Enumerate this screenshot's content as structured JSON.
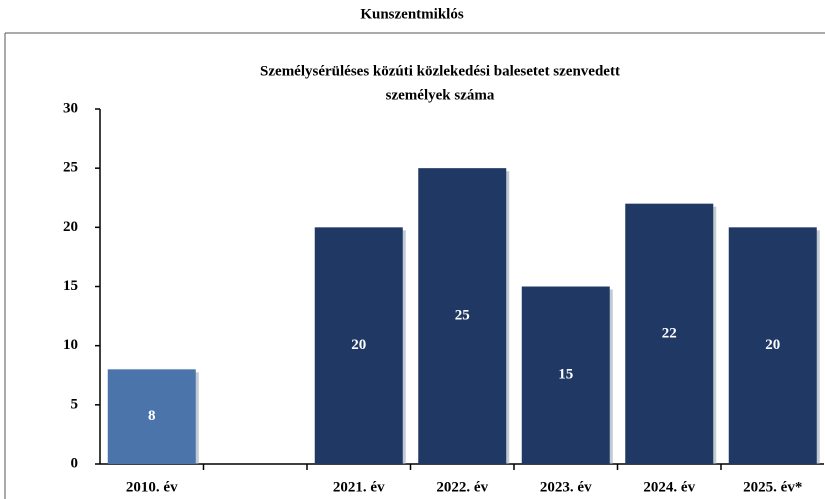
{
  "chart_data": {
    "type": "bar",
    "supertitle": "Kunszentmiklós",
    "title": [
      "Személysérüléses közúti közlekedési balesetet szenvedett",
      "személyek száma"
    ],
    "categories": [
      "2010. év",
      null,
      "2021. év",
      "2022. év",
      "2023. év",
      "2024. év",
      "2025. év*"
    ],
    "values": [
      8,
      null,
      20,
      25,
      15,
      22,
      20
    ],
    "colors": [
      "#4a74aa",
      null,
      "#1f3864",
      "#1f3864",
      "#1f3864",
      "#1f3864",
      "#1f3864"
    ],
    "ylim": [
      0,
      30
    ],
    "yticks": [
      0,
      5,
      10,
      15,
      20,
      25,
      30
    ],
    "grid": false
  }
}
